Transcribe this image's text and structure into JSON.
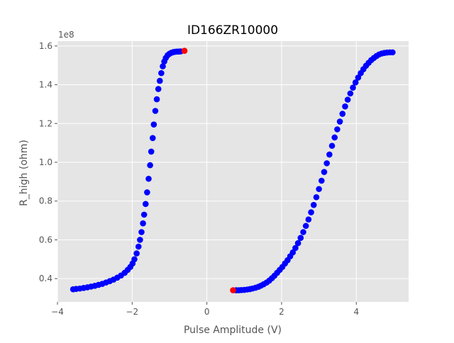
{
  "chart_data": {
    "type": "scatter",
    "title": "ID166ZR10000",
    "xlabel": "Pulse Amplitude (V)",
    "ylabel": "R_high (ohm)",
    "y_offset_label": "1e8",
    "xlim": [
      -4.0,
      5.4
    ],
    "ylim": [
      0.28,
      1.625
    ],
    "y_scale_factor": 100000000,
    "x_ticks": [
      -4,
      -2,
      0,
      2,
      4
    ],
    "x_tick_labels": [
      "−4",
      "−2",
      "0",
      "2",
      "4"
    ],
    "y_ticks": [
      0.4,
      0.6,
      0.8,
      1.0,
      1.2,
      1.4,
      1.6
    ],
    "y_tick_labels": [
      "0.4",
      "0.6",
      "0.8",
      "1.0",
      "1.2",
      "1.4",
      "1.6"
    ],
    "grid": true,
    "style": "ggplot",
    "colors": {
      "background": "#e5e5e5",
      "grid": "#ffffff",
      "points": "#0000ff",
      "highlight": "#ff0000",
      "text": "#555555",
      "title": "#000000"
    },
    "series": [
      {
        "color": "#0000ff",
        "points": [
          [
            -3.58,
            0.345
          ],
          [
            -3.5,
            0.347
          ],
          [
            -3.4,
            0.349
          ],
          [
            -3.3,
            0.352
          ],
          [
            -3.2,
            0.355
          ],
          [
            -3.1,
            0.359
          ],
          [
            -3.0,
            0.363
          ],
          [
            -2.9,
            0.368
          ],
          [
            -2.8,
            0.373
          ],
          [
            -2.7,
            0.38
          ],
          [
            -2.6,
            0.387
          ],
          [
            -2.5,
            0.395
          ],
          [
            -2.4,
            0.405
          ],
          [
            -2.3,
            0.416
          ],
          [
            -2.2,
            0.43
          ],
          [
            -2.12,
            0.445
          ],
          [
            -2.05,
            0.46
          ],
          [
            -1.99,
            0.478
          ],
          [
            -1.94,
            0.5
          ],
          [
            -1.88,
            0.53
          ],
          [
            -1.83,
            0.565
          ],
          [
            -1.79,
            0.6
          ],
          [
            -1.75,
            0.64
          ],
          [
            -1.71,
            0.685
          ],
          [
            -1.68,
            0.73
          ],
          [
            -1.64,
            0.785
          ],
          [
            -1.6,
            0.845
          ],
          [
            -1.56,
            0.915
          ],
          [
            -1.52,
            0.985
          ],
          [
            -1.49,
            1.055
          ],
          [
            -1.45,
            1.125
          ],
          [
            -1.42,
            1.195
          ],
          [
            -1.38,
            1.265
          ],
          [
            -1.34,
            1.325
          ],
          [
            -1.3,
            1.378
          ],
          [
            -1.26,
            1.42
          ],
          [
            -1.22,
            1.46
          ],
          [
            -1.18,
            1.495
          ],
          [
            -1.14,
            1.52
          ],
          [
            -1.1,
            1.538
          ],
          [
            -1.05,
            1.552
          ],
          [
            -1.0,
            1.56
          ],
          [
            -0.95,
            1.565
          ],
          [
            -0.9,
            1.568
          ],
          [
            -0.85,
            1.57
          ],
          [
            -0.8,
            1.571
          ],
          [
            -0.75,
            1.571
          ],
          [
            -0.7,
            1.572
          ],
          [
            0.78,
            0.34
          ],
          [
            0.85,
            0.34
          ],
          [
            0.92,
            0.341
          ],
          [
            1.0,
            0.342
          ],
          [
            1.08,
            0.344
          ],
          [
            1.15,
            0.346
          ],
          [
            1.22,
            0.349
          ],
          [
            1.3,
            0.353
          ],
          [
            1.38,
            0.358
          ],
          [
            1.45,
            0.364
          ],
          [
            1.52,
            0.371
          ],
          [
            1.6,
            0.38
          ],
          [
            1.67,
            0.39
          ],
          [
            1.74,
            0.402
          ],
          [
            1.81,
            0.415
          ],
          [
            1.88,
            0.43
          ],
          [
            1.95,
            0.445
          ],
          [
            2.02,
            0.46
          ],
          [
            2.09,
            0.478
          ],
          [
            2.16,
            0.495
          ],
          [
            2.23,
            0.515
          ],
          [
            2.3,
            0.535
          ],
          [
            2.37,
            0.558
          ],
          [
            2.44,
            0.583
          ],
          [
            2.51,
            0.61
          ],
          [
            2.58,
            0.64
          ],
          [
            2.65,
            0.672
          ],
          [
            2.72,
            0.705
          ],
          [
            2.79,
            0.742
          ],
          [
            2.86,
            0.78
          ],
          [
            2.93,
            0.82
          ],
          [
            3.0,
            0.862
          ],
          [
            3.07,
            0.905
          ],
          [
            3.14,
            0.95
          ],
          [
            3.21,
            0.995
          ],
          [
            3.28,
            1.04
          ],
          [
            3.35,
            1.085
          ],
          [
            3.42,
            1.128
          ],
          [
            3.49,
            1.17
          ],
          [
            3.56,
            1.21
          ],
          [
            3.63,
            1.25
          ],
          [
            3.7,
            1.288
          ],
          [
            3.77,
            1.323
          ],
          [
            3.84,
            1.355
          ],
          [
            3.91,
            1.385
          ],
          [
            3.98,
            1.412
          ],
          [
            4.05,
            1.437
          ],
          [
            4.12,
            1.46
          ],
          [
            4.19,
            1.48
          ],
          [
            4.26,
            1.498
          ],
          [
            4.33,
            1.513
          ],
          [
            4.4,
            1.527
          ],
          [
            4.47,
            1.538
          ],
          [
            4.54,
            1.548
          ],
          [
            4.61,
            1.556
          ],
          [
            4.68,
            1.561
          ],
          [
            4.75,
            1.564
          ],
          [
            4.82,
            1.566
          ],
          [
            4.9,
            1.567
          ],
          [
            4.97,
            1.567
          ]
        ]
      },
      {
        "color": "#ff0000",
        "points": [
          [
            -0.6,
            1.575
          ],
          [
            0.7,
            0.34
          ]
        ]
      }
    ]
  }
}
